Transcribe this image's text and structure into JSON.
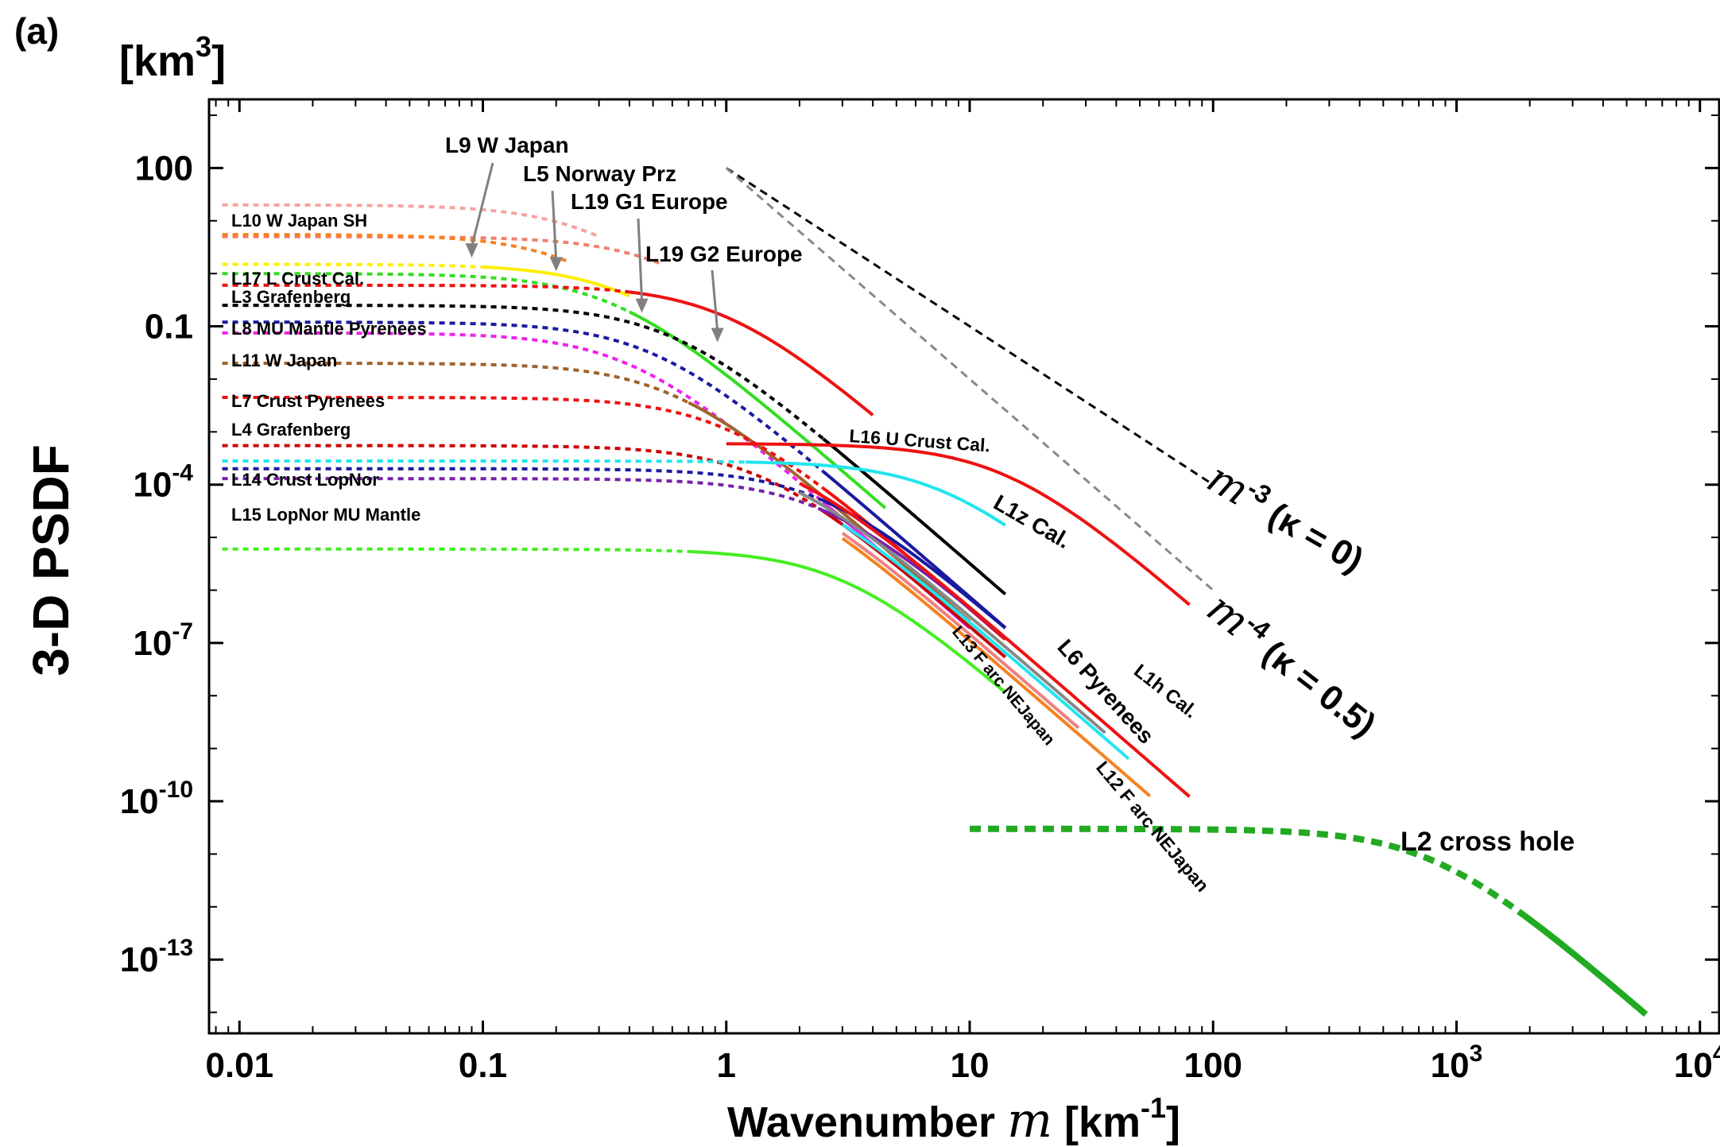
{
  "panel_label": "(a)",
  "chart_data": {
    "type": "line",
    "title": "",
    "xlabel_text": "Wavenumber",
    "xlabel_symbol": "m",
    "xlabel_unit_open": "[km",
    "xlabel_unit_sup": "-1",
    "xlabel_unit_close": "]",
    "ylabel": "3-D PSDF",
    "yunit_base": "[km",
    "yunit_sup": "3",
    "yunit_close": "]",
    "x_scale": "log",
    "y_scale": "log",
    "xlim": [
      0.0075,
      12000
    ],
    "ylim": [
      4e-15,
      2000
    ],
    "grid": false,
    "x_ticks": [
      {
        "value": 0.01,
        "base": "0.01",
        "sup": ""
      },
      {
        "value": 0.1,
        "base": "0.1",
        "sup": ""
      },
      {
        "value": 1,
        "base": "1",
        "sup": ""
      },
      {
        "value": 10,
        "base": "10",
        "sup": ""
      },
      {
        "value": 100,
        "base": "100",
        "sup": ""
      },
      {
        "value": 1000,
        "base": "10",
        "sup": "3"
      },
      {
        "value": 10000,
        "base": "10",
        "sup": "4"
      }
    ],
    "y_ticks": [
      {
        "value": 100,
        "base": "100",
        "sup": ""
      },
      {
        "value": 0.1,
        "base": "0.1",
        "sup": ""
      },
      {
        "value": 0.0001,
        "base": "10",
        "sup": "-4"
      },
      {
        "value": 1e-07,
        "base": "10",
        "sup": "-7"
      },
      {
        "value": 1e-10,
        "base": "10",
        "sup": "-10"
      },
      {
        "value": 1e-13,
        "base": "10",
        "sup": "-13"
      }
    ],
    "reference_lines": [
      {
        "id": "m3",
        "color": "#000000",
        "x": [
          1,
          10,
          100
        ],
        "y": [
          100,
          0.1,
          0.0001
        ]
      },
      {
        "id": "m4",
        "color": "#888888",
        "x": [
          1,
          10,
          100
        ],
        "y": [
          100,
          0.01,
          1e-06
        ]
      }
    ],
    "reference_labels": [
      {
        "id": "m3",
        "symbol": "m",
        "exp": "-3",
        "kappa": "(κ = 0)"
      },
      {
        "id": "m4",
        "symbol": "m",
        "exp": "-4",
        "kappa": "(κ = 0.5)"
      }
    ],
    "series": [
      {
        "id": "L9",
        "name": "L9 W Japan",
        "color": "#f4a4a0",
        "y0": 20,
        "a": 0.3,
        "d_x": [
          0.0085,
          0.3
        ],
        "s_x": []
      },
      {
        "id": "L5",
        "name": "L5 Norway Prz",
        "color": "#f08070",
        "y0": 5,
        "a": 0.6,
        "d_x": [
          0.0085,
          0.55
        ],
        "s_x": []
      },
      {
        "id": "L10",
        "name": "L10 W Japan SH",
        "color": "#f58220",
        "y0": 5.5,
        "a": 0.25,
        "d_x": [
          0.0085,
          0.22
        ],
        "s_x": []
      },
      {
        "id": "L19G1",
        "name": "L19 G1 Europe",
        "color": "#ffee00",
        "y0": 1.5,
        "a": 0.4,
        "d_x": [
          0.0085,
          0.1
        ],
        "s_x": [
          0.1,
          0.4
        ]
      },
      {
        "id": "L18",
        "name": "",
        "color": "#33dd22",
        "y0": 1.0,
        "a": 0.35,
        "d_x": [
          0.0085,
          0.4
        ],
        "s_x": [
          0.4,
          4.5
        ]
      },
      {
        "id": "L19G2",
        "name": "L19 G2 Europe",
        "color": "#ee1111",
        "y0": 0.6,
        "a": 1.0,
        "d_x": [
          0.0085,
          0.4
        ],
        "s_x": [
          0.4,
          4
        ]
      },
      {
        "id": "L17",
        "name": "L17 L Crust Cal.",
        "color": "#000000",
        "y0": 0.25,
        "a": 0.6,
        "d_x": [
          0.0085,
          2.5
        ],
        "s_x": [
          2.5,
          14
        ]
      },
      {
        "id": "L3",
        "name": "L3 Grafenberg",
        "color": "#1a1aa0",
        "y0": 0.12,
        "a": 0.5,
        "d_x": [
          0.0085,
          2.5
        ],
        "s_x": [
          2.5,
          14
        ]
      },
      {
        "id": "L8",
        "name": "L8 MU Mantle Pyrenees",
        "color": "#ee22ee",
        "y0": 0.075,
        "a": 0.4,
        "d_x": [
          0.0085,
          2.5
        ],
        "s_x": [
          2.5,
          10
        ]
      },
      {
        "id": "L11",
        "name": "L11 W Japan",
        "color": "#a0622d",
        "y0": 0.02,
        "a": 0.6,
        "d_x": [
          0.0085,
          0.7
        ],
        "s_x": [
          0.7,
          10
        ]
      },
      {
        "id": "L7",
        "name": "L7 Crust Pyrenees",
        "color": "#ee1111",
        "y0": 0.0045,
        "a": 1.0,
        "d_x": [
          0.0085,
          2.5
        ],
        "s_x": [
          2.5,
          14
        ]
      },
      {
        "id": "L4",
        "name": "L4 Grafenberg",
        "color": "#cc0000",
        "y0": 0.00055,
        "a": 1.4,
        "d_x": [
          0.0085,
          2.5
        ],
        "s_x": [
          2.5,
          14
        ]
      },
      {
        "id": "L16",
        "name": "L16 U Crust Cal.",
        "color": "#22e5ee",
        "y0": 0.00028,
        "a": 8.0,
        "d_x": [
          0.0085,
          1.2
        ],
        "s_x": [
          1.2,
          14
        ]
      },
      {
        "id": "L14",
        "name": "L14 Crust LopNor",
        "color": "#1a1aa0",
        "y0": 0.0002,
        "a": 2.5,
        "d_x": [
          0.0085,
          2.5
        ],
        "s_x": [
          2.5,
          14
        ]
      },
      {
        "id": "L14b",
        "name": "",
        "color": "#7722aa",
        "y0": 0.00013,
        "a": 2.5,
        "d_x": [
          0.0085,
          2.5
        ],
        "s_x": [
          2.5,
          14
        ]
      },
      {
        "id": "L15",
        "name": "L15 LopNor MU Mantle",
        "color": "#44ee22",
        "y0": 6e-06,
        "a": 3.0,
        "d_x": [
          0.0085,
          0.7
        ],
        "s_x": [
          0.7,
          14
        ]
      },
      {
        "id": "L1z",
        "name": "L1z Cal.",
        "color": "#ee1111",
        "y0": 0.0006,
        "a": 14,
        "d_x": [],
        "s_x": [
          1,
          80
        ]
      },
      {
        "id": "L1h",
        "name": "L1h Cal.",
        "color": "#ee1111",
        "y0": 0.0006,
        "a": 1.7,
        "d_x": [],
        "s_x": [
          2,
          80
        ]
      },
      {
        "id": "L6",
        "name": "L6 Pyrenees",
        "color": "#888888",
        "y0": 0.0004,
        "a": 1.7,
        "d_x": [],
        "s_x": [
          2,
          36
        ]
      },
      {
        "id": "L6c",
        "name": "",
        "color": "#22e5ee",
        "y0": 0.00025,
        "a": 1.8,
        "d_x": [],
        "s_x": [
          3,
          45
        ]
      },
      {
        "id": "L13",
        "name": "L13 F arc NEJapan",
        "color": "#f08080",
        "y0": 0.0003,
        "a": 1.5,
        "d_x": [],
        "s_x": [
          3,
          28
        ]
      },
      {
        "id": "L12",
        "name": "L12 F arc NEJapan",
        "color": "#f58220",
        "y0": 0.0003,
        "a": 1.4,
        "d_x": [],
        "s_x": [
          3,
          55
        ]
      },
      {
        "id": "L2",
        "name": "L2 cross hole",
        "color": "#22aa22",
        "y0": 3e-11,
        "a": 800,
        "d_x": [
          10,
          1900
        ],
        "s_x": [
          1900,
          6000
        ]
      }
    ],
    "annotations": [
      {
        "text": "L9 W Japan",
        "arrow": true
      },
      {
        "text": "L5 Norway Prz",
        "arrow": true
      },
      {
        "text": "L19 G1 Europe",
        "arrow": true
      },
      {
        "text": "L19 G2 Europe",
        "arrow": true
      },
      {
        "text": "L10 W Japan  SH"
      },
      {
        "text": "L17 L Crust Cal."
      },
      {
        "text": "L3 Grafenberg"
      },
      {
        "text": "L8 MU Mantle Pyrenees"
      },
      {
        "text": "L11 W Japan"
      },
      {
        "text": "L7 Crust Pyrenees"
      },
      {
        "text": "L4 Grafenberg"
      },
      {
        "text": "L14 Crust LopNor"
      },
      {
        "text": "L15 LopNor MU Mantle"
      },
      {
        "text": "L16 U Crust Cal."
      },
      {
        "text": "L1z Cal."
      },
      {
        "text": "L1h Cal."
      },
      {
        "text": "L6 Pyrenees"
      },
      {
        "text": "L13  F arc NEJapan"
      },
      {
        "text": "L12 F arc NEJapan"
      },
      {
        "text": "L2 cross hole"
      }
    ]
  }
}
